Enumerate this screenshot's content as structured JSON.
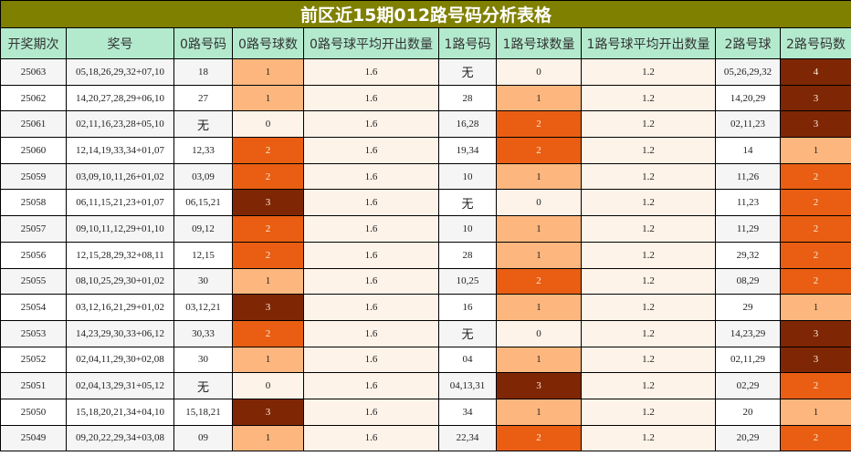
{
  "title": "前区近15期012路号码分析表格",
  "headers": [
    "开奖期次",
    "奖号",
    "0路号码",
    "0路号球数",
    "0路号球平均开出数量",
    "1路号码",
    "1路号球数量",
    "1路号球平均开出数量",
    "2路号球",
    "2路号码数"
  ],
  "color_scale": {
    "0": "#fef3e8",
    "1": "#fdb77e",
    "2": "#e95e12",
    "3": "#7f2704",
    "4": "#7f2704"
  },
  "rows": [
    {
      "period": "25063",
      "numbers": "05,18,26,29,32+07,10",
      "r0": "18",
      "r0n": "1",
      "r0avg": "1.6",
      "r1": "无",
      "r1n": "0",
      "r1avg": "1.2",
      "r2": "05,26,29,32",
      "r2n": "4"
    },
    {
      "period": "25062",
      "numbers": "14,20,27,28,29+06,10",
      "r0": "27",
      "r0n": "1",
      "r0avg": "1.6",
      "r1": "28",
      "r1n": "1",
      "r1avg": "1.2",
      "r2": "14,20,29",
      "r2n": "3"
    },
    {
      "period": "25061",
      "numbers": "02,11,16,23,28+05,10",
      "r0": "无",
      "r0n": "0",
      "r0avg": "1.6",
      "r1": "16,28",
      "r1n": "2",
      "r1avg": "1.2",
      "r2": "02,11,23",
      "r2n": "3"
    },
    {
      "period": "25060",
      "numbers": "12,14,19,33,34+01,07",
      "r0": "12,33",
      "r0n": "2",
      "r0avg": "1.6",
      "r1": "19,34",
      "r1n": "2",
      "r1avg": "1.2",
      "r2": "14",
      "r2n": "1"
    },
    {
      "period": "25059",
      "numbers": "03,09,10,11,26+01,02",
      "r0": "03,09",
      "r0n": "2",
      "r0avg": "1.6",
      "r1": "10",
      "r1n": "1",
      "r1avg": "1.2",
      "r2": "11,26",
      "r2n": "2"
    },
    {
      "period": "25058",
      "numbers": "06,11,15,21,23+01,07",
      "r0": "06,15,21",
      "r0n": "3",
      "r0avg": "1.6",
      "r1": "无",
      "r1n": "0",
      "r1avg": "1.2",
      "r2": "11,23",
      "r2n": "2"
    },
    {
      "period": "25057",
      "numbers": "09,10,11,12,29+01,10",
      "r0": "09,12",
      "r0n": "2",
      "r0avg": "1.6",
      "r1": "10",
      "r1n": "1",
      "r1avg": "1.2",
      "r2": "11,29",
      "r2n": "2"
    },
    {
      "period": "25056",
      "numbers": "12,15,28,29,32+08,11",
      "r0": "12,15",
      "r0n": "2",
      "r0avg": "1.6",
      "r1": "28",
      "r1n": "1",
      "r1avg": "1.2",
      "r2": "29,32",
      "r2n": "2"
    },
    {
      "period": "25055",
      "numbers": "08,10,25,29,30+01,02",
      "r0": "30",
      "r0n": "1",
      "r0avg": "1.6",
      "r1": "10,25",
      "r1n": "2",
      "r1avg": "1.2",
      "r2": "08,29",
      "r2n": "2"
    },
    {
      "period": "25054",
      "numbers": "03,12,16,21,29+01,02",
      "r0": "03,12,21",
      "r0n": "3",
      "r0avg": "1.6",
      "r1": "16",
      "r1n": "1",
      "r1avg": "1.2",
      "r2": "29",
      "r2n": "1"
    },
    {
      "period": "25053",
      "numbers": "14,23,29,30,33+06,12",
      "r0": "30,33",
      "r0n": "2",
      "r0avg": "1.6",
      "r1": "无",
      "r1n": "0",
      "r1avg": "1.2",
      "r2": "14,23,29",
      "r2n": "3"
    },
    {
      "period": "25052",
      "numbers": "02,04,11,29,30+02,08",
      "r0": "30",
      "r0n": "1",
      "r0avg": "1.6",
      "r1": "04",
      "r1n": "1",
      "r1avg": "1.2",
      "r2": "02,11,29",
      "r2n": "3"
    },
    {
      "period": "25051",
      "numbers": "02,04,13,29,31+05,12",
      "r0": "无",
      "r0n": "0",
      "r0avg": "1.6",
      "r1": "04,13,31",
      "r1n": "3",
      "r1avg": "1.2",
      "r2": "02,29",
      "r2n": "2"
    },
    {
      "period": "25050",
      "numbers": "15,18,20,21,34+04,10",
      "r0": "15,18,21",
      "r0n": "3",
      "r0avg": "1.6",
      "r1": "34",
      "r1n": "1",
      "r1avg": "1.2",
      "r2": "20",
      "r2n": "1"
    },
    {
      "period": "25049",
      "numbers": "09,20,22,29,34+03,08",
      "r0": "09",
      "r0n": "1",
      "r0avg": "1.6",
      "r1": "22,34",
      "r1n": "2",
      "r1avg": "1.2",
      "r2": "20,29",
      "r2n": "2"
    }
  ]
}
